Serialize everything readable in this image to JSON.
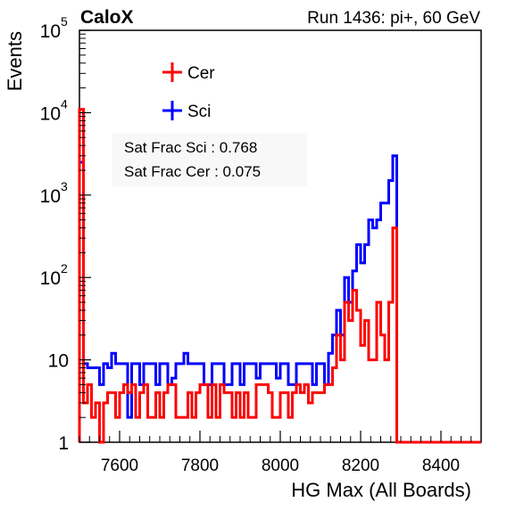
{
  "header": {
    "left_label": "CaloX",
    "right_label": "Run 1436: pi+, 60 GeV"
  },
  "stats": {
    "sat_frac_sci": "Sat Frac Sci : 0.768",
    "sat_frac_cer": "Sat Frac Cer : 0.075"
  },
  "colors": {
    "cer": "#ff0000",
    "sci": "#0000ff",
    "axis": "#000000"
  },
  "chart_data": {
    "type": "histogram",
    "xlabel": "HG Max (All Boards)",
    "ylabel": "Events",
    "xlim": [
      7500,
      8500
    ],
    "ylim": [
      1,
      100000
    ],
    "y_scale": "log",
    "x_ticks": [
      7600,
      7800,
      8000,
      8200,
      8400
    ],
    "y_ticks": [
      {
        "value": 1,
        "base": "1",
        "exp": ""
      },
      {
        "value": 10,
        "base": "10",
        "exp": ""
      },
      {
        "value": 100,
        "base": "10",
        "exp": "2"
      },
      {
        "value": 1000,
        "base": "10",
        "exp": "3"
      },
      {
        "value": 10000,
        "base": "10",
        "exp": "4"
      },
      {
        "value": 100000,
        "base": "10",
        "exp": "5"
      }
    ],
    "bin_width": 10,
    "bin_start": 7500,
    "legend": [
      {
        "name": "Cer",
        "color": "#ff0000"
      },
      {
        "name": "Sci",
        "color": "#0000ff"
      }
    ],
    "series": [
      {
        "name": "Sci",
        "color": "#0000ff",
        "values": [
          2500,
          9,
          8,
          8,
          8,
          5,
          9,
          8,
          12,
          9,
          9,
          9,
          2,
          9,
          9,
          5,
          9,
          9,
          9,
          5,
          9,
          9,
          5,
          6,
          9,
          9,
          12,
          9,
          9,
          9,
          9,
          5,
          5,
          9,
          9,
          9,
          5,
          5,
          9,
          9,
          5,
          9,
          9,
          9,
          6,
          9,
          9,
          9,
          9,
          6,
          9,
          9,
          5,
          5,
          9,
          9,
          9,
          9,
          5,
          9,
          9,
          5,
          12,
          20,
          40,
          20,
          100,
          50,
          120,
          250,
          150,
          250,
          500,
          400,
          500,
          800,
          800,
          1500,
          3000,
          0
        ]
      },
      {
        "name": "Cer",
        "color": "#ff0000",
        "values": [
          11000,
          3,
          5,
          2,
          3,
          1,
          3,
          4,
          4,
          2,
          4,
          5,
          4,
          5,
          2,
          4,
          5,
          2,
          2,
          4,
          2,
          4,
          5,
          5,
          2,
          2,
          2,
          4,
          2,
          4,
          5,
          5,
          2,
          5,
          2,
          5,
          4,
          4,
          2,
          4,
          2,
          4,
          2,
          2,
          5,
          5,
          5,
          4,
          2,
          2,
          4,
          4,
          2,
          4,
          5,
          4,
          5,
          3,
          4,
          4,
          4,
          5,
          5,
          8,
          20,
          10,
          50,
          30,
          70,
          40,
          15,
          30,
          10,
          10,
          50,
          20,
          10,
          50,
          400,
          0
        ]
      }
    ]
  }
}
